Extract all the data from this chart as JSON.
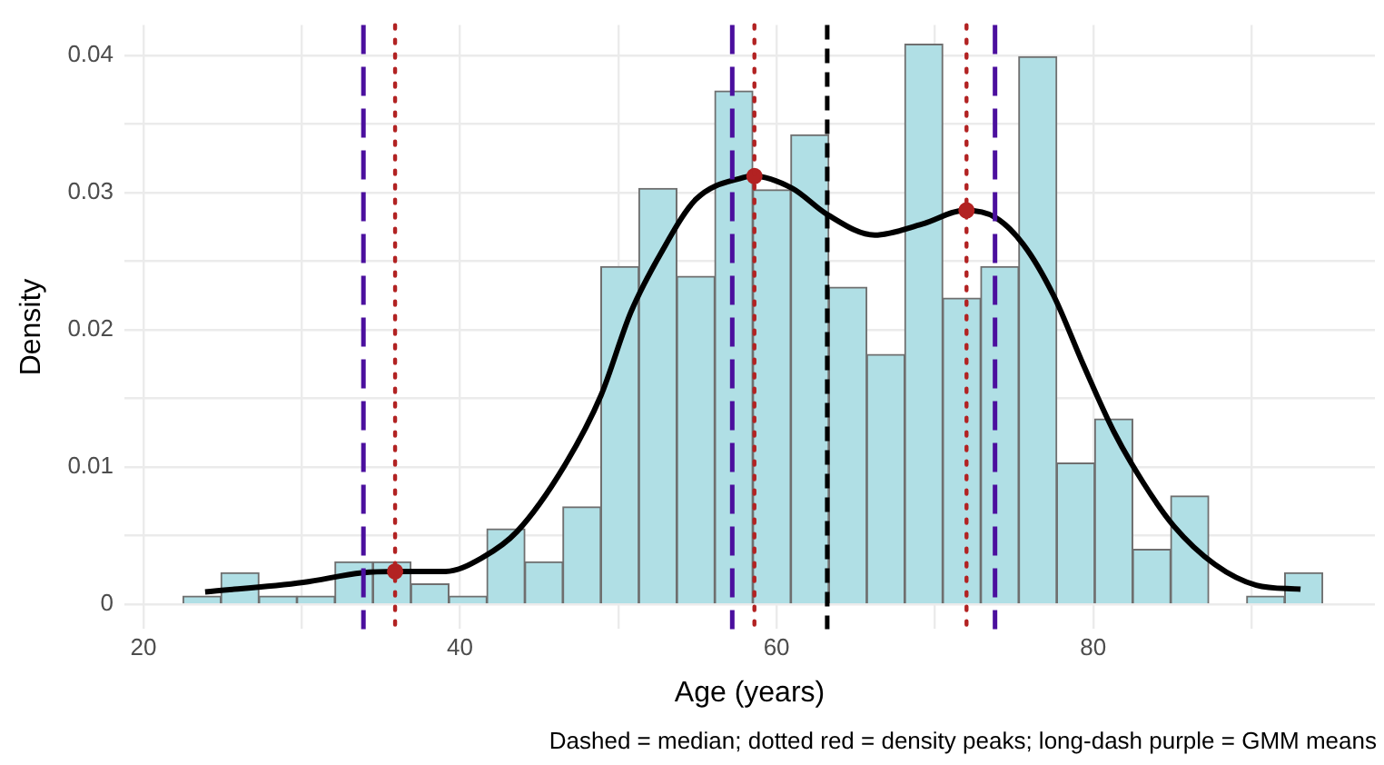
{
  "chart_data": {
    "type": "histogram",
    "xlabel": "Age (years)",
    "ylabel": "Density",
    "bins": [
      22.5,
      24.9,
      27.3,
      29.7,
      32.1,
      34.5,
      36.9,
      39.3,
      41.7,
      44.1,
      46.5,
      48.9,
      51.3,
      53.7,
      56.1,
      58.5,
      60.9,
      63.3,
      65.7,
      68.1,
      70.5,
      72.9,
      75.3,
      77.7,
      80.1,
      82.5,
      84.9,
      87.3,
      89.7,
      92.1,
      94.5
    ],
    "values": [
      0.0006,
      0.0023,
      0.0006,
      0.0006,
      0.0031,
      0.0031,
      0.0015,
      0.0006,
      0.0055,
      0.0031,
      0.0071,
      0.0246,
      0.0303,
      0.0239,
      0.0374,
      0.0302,
      0.0342,
      0.0231,
      0.0182,
      0.0408,
      0.0223,
      0.0246,
      0.0399,
      0.0103,
      0.0135,
      0.004,
      0.0079,
      0,
      0.0006,
      0.0023
    ],
    "color": "#b0dfe5",
    "series": [
      {
        "type": "line",
        "color": "#000000",
        "x": [
          23.9,
          30.1,
          33.8,
          35.9,
          39.1,
          41.4,
          43.6,
          46.6,
          48.9,
          50.8,
          52.7,
          54.9,
          57.9,
          58.5,
          61.0,
          63.2,
          66.2,
          69.2,
          71.9,
          73.8,
          75.6,
          77.5,
          79.4,
          81.3,
          83.2,
          85.1,
          87.7,
          90.3,
          93.1
        ],
        "values": [
          0.0009,
          0.0016,
          0.0023,
          0.0024,
          0.0024,
          0.0034,
          0.0053,
          0.0101,
          0.0152,
          0.0213,
          0.0256,
          0.0295,
          0.0311,
          0.0312,
          0.0303,
          0.0284,
          0.0269,
          0.0277,
          0.0287,
          0.0282,
          0.0262,
          0.0225,
          0.0174,
          0.0126,
          0.0088,
          0.0057,
          0.0029,
          0.0014,
          0.0011
        ]
      },
      {
        "type": "scatter",
        "color": "#b22222",
        "marker": "circle",
        "x": [
          35.9,
          58.6,
          72.0
        ],
        "values": [
          0.0024,
          0.0312,
          0.0287
        ]
      }
    ],
    "ref_lines": [
      {
        "axis": "x",
        "value": 63.2,
        "color": "#000000",
        "line_style": "dashed"
      },
      {
        "axis": "x",
        "value": 35.9,
        "color": "#b22222",
        "line_style": "dotted"
      },
      {
        "axis": "x",
        "value": 58.6,
        "color": "#b22222",
        "line_style": "dotted"
      },
      {
        "axis": "x",
        "value": 72.0,
        "color": "#b22222",
        "line_style": "dotted"
      },
      {
        "axis": "x",
        "value": 33.9,
        "color": "#4b0f9e",
        "line_style": "longdash"
      },
      {
        "axis": "x",
        "value": 57.2,
        "color": "#4b0f9e",
        "line_style": "longdash"
      },
      {
        "axis": "x",
        "value": 73.8,
        "color": "#4b0f9e",
        "line_style": "longdash"
      }
    ],
    "annotations": [
      "Dashed = median; dotted red = density peaks; long-dash purple = GMM means"
    ],
    "xlim": [
      18.8,
      97.8
    ],
    "xticks": [
      20,
      {
        "value": 30,
        "label": null
      },
      40,
      {
        "value": 50,
        "label": null
      },
      60,
      {
        "value": 70,
        "label": null
      },
      80,
      {
        "value": 90,
        "label": null
      }
    ],
    "ylim": [
      -0.0018,
      0.0422
    ],
    "yticks": [
      0,
      {
        "value": 0.005,
        "label": null
      },
      0.01,
      {
        "value": 0.015,
        "label": null
      },
      0.02,
      {
        "value": 0.025,
        "label": null
      },
      0.03,
      {
        "value": 0.035,
        "label": null
      },
      0.04
    ],
    "grid": true,
    "legend": false
  }
}
